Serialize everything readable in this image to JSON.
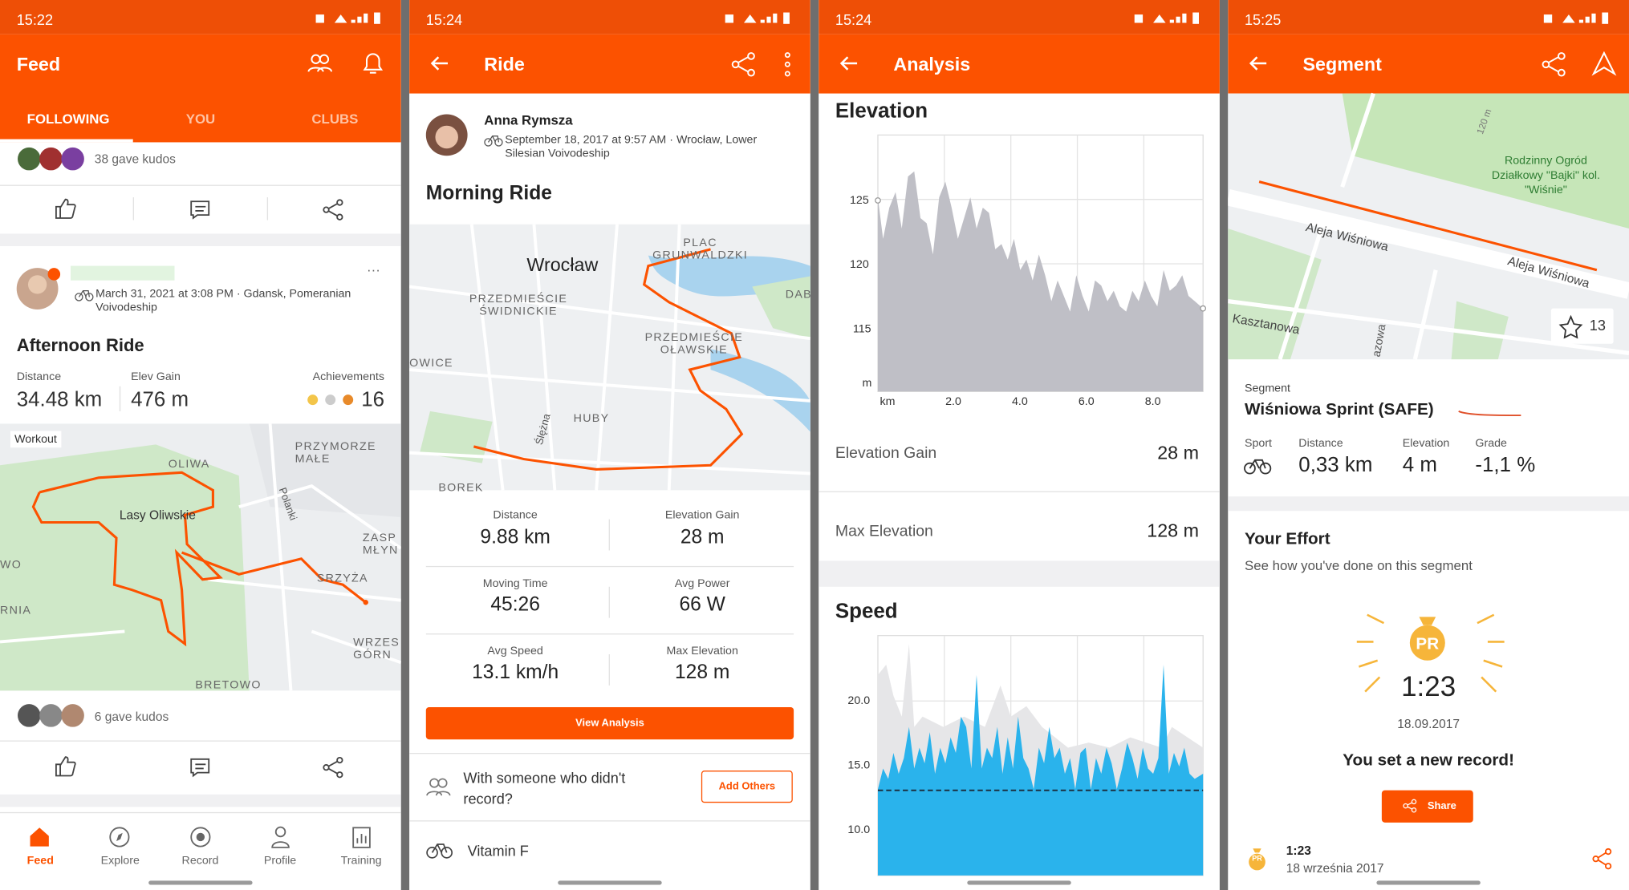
{
  "feed": {
    "status_time": "15:22",
    "title": "Feed",
    "tabs": [
      "FOLLOWING",
      "YOU",
      "CLUBS"
    ],
    "kudos_top": "38 gave kudos",
    "post": {
      "date_location": "March 31, 2021 at 3:08 PM · Gdansk, Pomeranian Voivodeship",
      "title": "Afternoon Ride",
      "stats": [
        {
          "label": "Distance",
          "value": "34.48 km"
        },
        {
          "label": "Elev Gain",
          "value": "476 m"
        },
        {
          "label": "Achievements",
          "value": "16"
        }
      ],
      "map_tag": "Workout",
      "map_labels": [
        "OLIWA",
        "Lasy Oliwskie",
        "PRZYMORZE MAŁE",
        "ZASP MŁYN",
        "WRZES GÓRN",
        "BRETOWO",
        "Polanki",
        "WO",
        "RNIA",
        "SRZYŻA"
      ],
      "kudos": "6 gave kudos"
    },
    "nav": [
      "Feed",
      "Explore",
      "Record",
      "Profile",
      "Training"
    ]
  },
  "ride": {
    "status_time": "15:24",
    "title": "Ride",
    "athlete": "Anna Rymsza",
    "date_location": "September 18, 2017 at 9:57 AM · Wrocław, Lower Silesian Voivodeship",
    "activity": "Morning Ride",
    "map_labels": [
      "Wrocław",
      "PLAC GRUNWALDZKI",
      "PRZEDMIEŚCIE ŚWIDNICKIE",
      "PRZEDMIEŚCIE OŁAWSKIE",
      "HUBY",
      "OWICE",
      "DAB",
      "Ślężna",
      "BOREK"
    ],
    "stats": [
      {
        "label": "Distance",
        "value": "9.88 km"
      },
      {
        "label": "Elevation Gain",
        "value": "28 m"
      },
      {
        "label": "Moving Time",
        "value": "45:26"
      },
      {
        "label": "Avg Power",
        "value": "66 W"
      },
      {
        "label": "Avg Speed",
        "value": "13.1 km/h"
      },
      {
        "label": "Max Elevation",
        "value": "128 m"
      }
    ],
    "analysis_button": "View Analysis",
    "with_others": "With someone who didn't record?",
    "add_others": "Add Others",
    "bike": "Vitamin F"
  },
  "analysis": {
    "status_time": "15:24",
    "title": "Analysis",
    "elevation_title": "Elevation",
    "elevation_y_ticks": [
      "125",
      "120",
      "115",
      "m"
    ],
    "elevation_x_ticks": [
      "km",
      "2.0",
      "4.0",
      "6.0",
      "8.0"
    ],
    "rows": [
      {
        "label": "Elevation Gain",
        "value": "28 m"
      },
      {
        "label": "Max Elevation",
        "value": "128 m"
      }
    ],
    "speed_title": "Speed",
    "speed_y_ticks": [
      "20.0",
      "15.0",
      "10.0"
    ]
  },
  "segment": {
    "status_time": "15:25",
    "title": "Segment",
    "map_labels": [
      "Rodzinny Ogród Działkowy \"Bajki\" kol. \"Wiśnie\"",
      "Aleja Wiśniowa",
      "Aleja Wiśniowa",
      "Kasztanowa",
      "120 m",
      "azowa"
    ],
    "star_count": "13",
    "kind": "Segment",
    "name": "Wiśniowa Sprint (SAFE)",
    "stat_labels": [
      "Sport",
      "Distance",
      "Elevation",
      "Grade"
    ],
    "stat_values": [
      "0,33 km",
      "4 m",
      "-1,1 %"
    ],
    "effort_title": "Your Effort",
    "effort_subtitle": "See how you've done on this segment",
    "pr": "PR",
    "time": "1:23",
    "date": "18.09.2017",
    "record": "You set a new record!",
    "share": "Share",
    "list_time": "1:23",
    "list_date": "18 września 2017",
    "list_pr": "PR"
  }
}
